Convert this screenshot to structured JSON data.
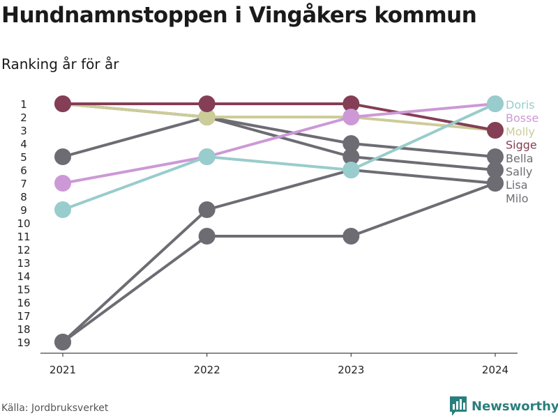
{
  "header": {
    "title": "Hundnamnstoppen i Vingåkers kommun",
    "subtitle": "Ranking år för år"
  },
  "footer": {
    "source": "Källa: Jordbruksverket",
    "brand": "Newsworthy"
  },
  "chart_data": {
    "type": "line",
    "title": "Hundnamnstoppen i Vingåkers kommun",
    "subtitle": "Ranking år för år",
    "x": [
      "2021",
      "2022",
      "2023",
      "2024"
    ],
    "y_ticks": [
      1,
      2,
      3,
      4,
      5,
      6,
      7,
      8,
      9,
      10,
      11,
      12,
      13,
      14,
      15,
      16,
      17,
      18,
      19
    ],
    "ylim": [
      19,
      1
    ],
    "y_reversed": true,
    "grid": false,
    "series": [
      {
        "name": "Milo",
        "values": [
          19,
          11,
          11,
          7
        ],
        "color": "#6d6c73"
      },
      {
        "name": "Lisa",
        "values": [
          19,
          9,
          6,
          7
        ],
        "color": "#6d6c73"
      },
      {
        "name": "Sally",
        "values": [
          5,
          2,
          5,
          6
        ],
        "color": "#6d6c73"
      },
      {
        "name": "Bella",
        "values": [
          1,
          2,
          4,
          5
        ],
        "color": "#6d6c73"
      },
      {
        "name": "Molly",
        "values": [
          1,
          2,
          2,
          3
        ],
        "color": "#cccc99"
      },
      {
        "name": "Sigge",
        "values": [
          1,
          1,
          1,
          3
        ],
        "color": "#843e55"
      },
      {
        "name": "Bosse",
        "values": [
          7,
          5,
          2,
          1
        ],
        "color": "#cc99d6"
      },
      {
        "name": "Doris",
        "values": [
          9,
          5,
          6,
          1
        ],
        "color": "#99cccc"
      }
    ],
    "end_labels": [
      {
        "name": "Doris",
        "color": "#99cccc"
      },
      {
        "name": "Bosse",
        "color": "#cc99d6"
      },
      {
        "name": "Molly",
        "color": "#cccc99"
      },
      {
        "name": "Sigge",
        "color": "#843e55"
      },
      {
        "name": "Bella",
        "color": "#6d6c73"
      },
      {
        "name": "Sally",
        "color": "#6d6c73"
      },
      {
        "name": "Lisa",
        "color": "#6d6c73"
      },
      {
        "name": "Milo",
        "color": "#6d6c73"
      }
    ]
  }
}
